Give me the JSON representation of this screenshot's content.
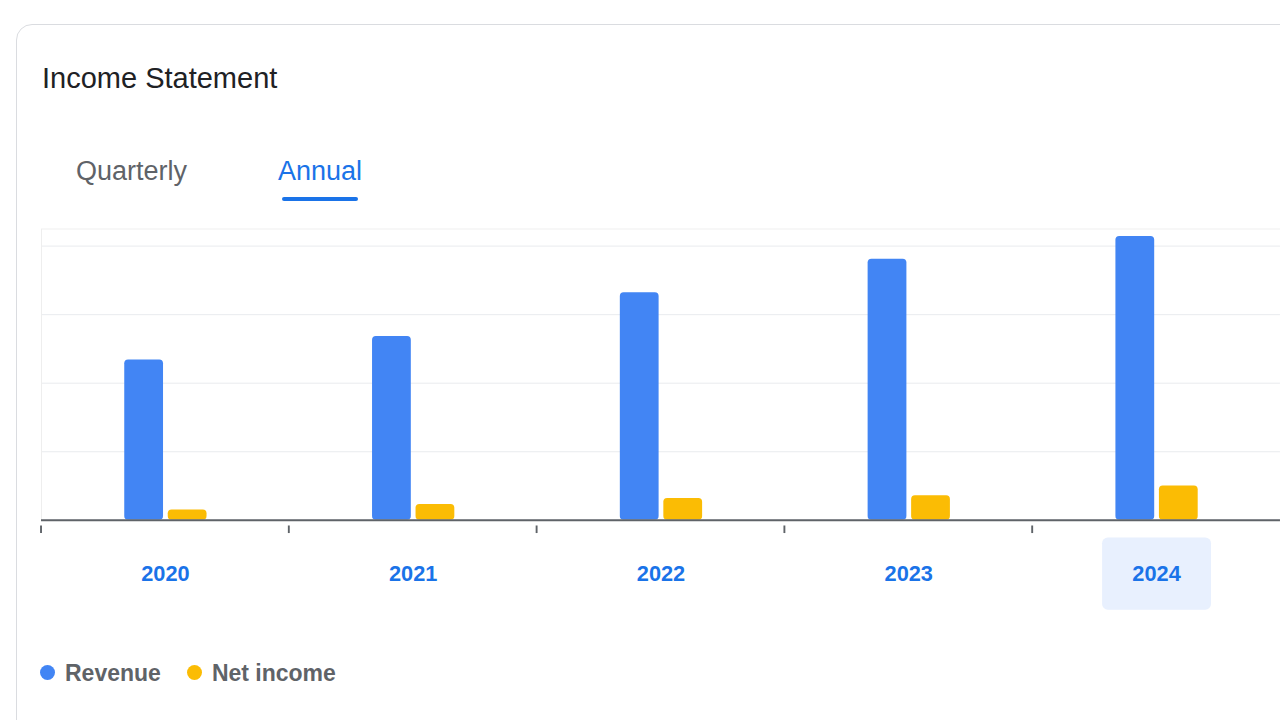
{
  "chart_data": {
    "type": "bar",
    "title": "Income Statement",
    "tabs": {
      "options": [
        "Quarterly",
        "Annual"
      ],
      "selected": "Annual"
    },
    "categories": [
      "2020",
      "2021",
      "2022",
      "2023",
      "2024"
    ],
    "series": [
      {
        "name": "Revenue",
        "color": "#4285f4",
        "values": [
          2.34,
          2.68,
          3.32,
          3.81,
          4.14
        ]
      },
      {
        "name": "Net income",
        "color": "#fbbc04",
        "values": [
          0.15,
          0.23,
          0.32,
          0.36,
          0.5
        ]
      }
    ],
    "ylim": [
      0,
      4.25
    ],
    "yticks": [
      0,
      1,
      2,
      3,
      4
    ],
    "grid": true,
    "tick_labels": "x",
    "legend": "bottom"
  }
}
